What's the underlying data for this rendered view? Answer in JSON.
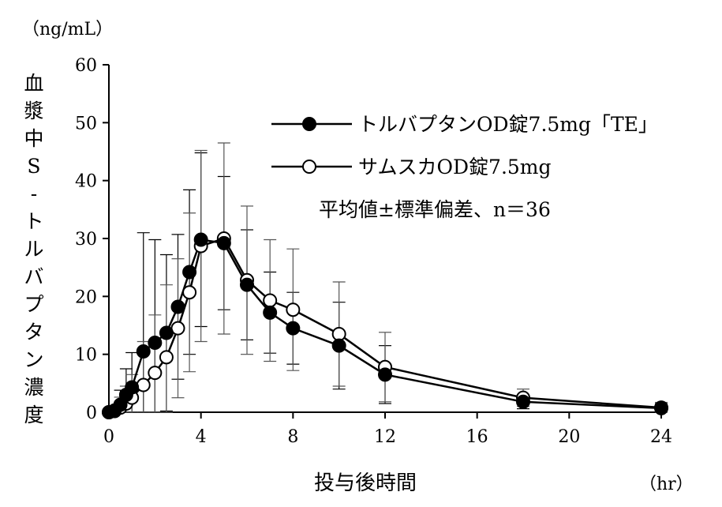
{
  "chart_data": {
    "type": "line",
    "title": "",
    "ylabel": "血漿中S-トルバプタン濃度",
    "ylabel_chars": [
      "血",
      "漿",
      "中",
      "S",
      "-",
      "ト",
      "ル",
      "バ",
      "プ",
      "タ",
      "ン",
      "濃",
      "度"
    ],
    "yunit": "（ng/mL）",
    "xlabel": "投与後時間",
    "xunit": "（hr）",
    "xlim": [
      0,
      24
    ],
    "ylim": [
      0,
      60
    ],
    "xticks": [
      0,
      4,
      8,
      12,
      16,
      20,
      24
    ],
    "yticks": [
      0,
      10,
      20,
      30,
      40,
      50,
      60
    ],
    "annotation": "平均値±標準偏差、n＝36",
    "series": [
      {
        "name": "トルバプタンOD錠7.5mg「TE」",
        "marker": "filled-circle",
        "x": [
          0,
          0.25,
          0.5,
          0.75,
          1,
          1.5,
          2,
          2.5,
          3,
          3.5,
          4,
          5,
          6,
          7,
          8,
          10,
          12,
          18,
          24
        ],
        "y": [
          0,
          0.3,
          1.3,
          3.0,
          4.3,
          10.5,
          12.0,
          13.7,
          18.2,
          24.2,
          29.8,
          29.2,
          22.0,
          17.2,
          14.5,
          11.5,
          6.5,
          1.8,
          0.7
        ],
        "err": [
          0,
          0.6,
          2.5,
          4.5,
          6.0,
          20.5,
          17.8,
          13.5,
          12.5,
          14.2,
          15.0,
          11.5,
          9.5,
          7.0,
          6.2,
          7.5,
          5.0,
          1.2,
          0.8
        ]
      },
      {
        "name": "サムスカOD錠7.5mg",
        "marker": "open-circle",
        "x": [
          0,
          0.25,
          0.5,
          0.75,
          1,
          1.5,
          2,
          2.5,
          3,
          3.5,
          4,
          5,
          6,
          7,
          8,
          10,
          12,
          18,
          24
        ],
        "y": [
          0,
          0.2,
          0.8,
          1.5,
          2.5,
          4.7,
          6.8,
          9.5,
          14.5,
          20.7,
          28.7,
          30.0,
          22.8,
          19.3,
          17.7,
          13.5,
          7.8,
          2.5,
          0.8
        ],
        "err": [
          0,
          0.5,
          1.8,
          3.0,
          4.0,
          7.5,
          10.0,
          12.5,
          12.0,
          13.7,
          16.5,
          16.5,
          12.8,
          10.5,
          10.5,
          9.0,
          6.0,
          1.5,
          0.9
        ]
      }
    ]
  }
}
